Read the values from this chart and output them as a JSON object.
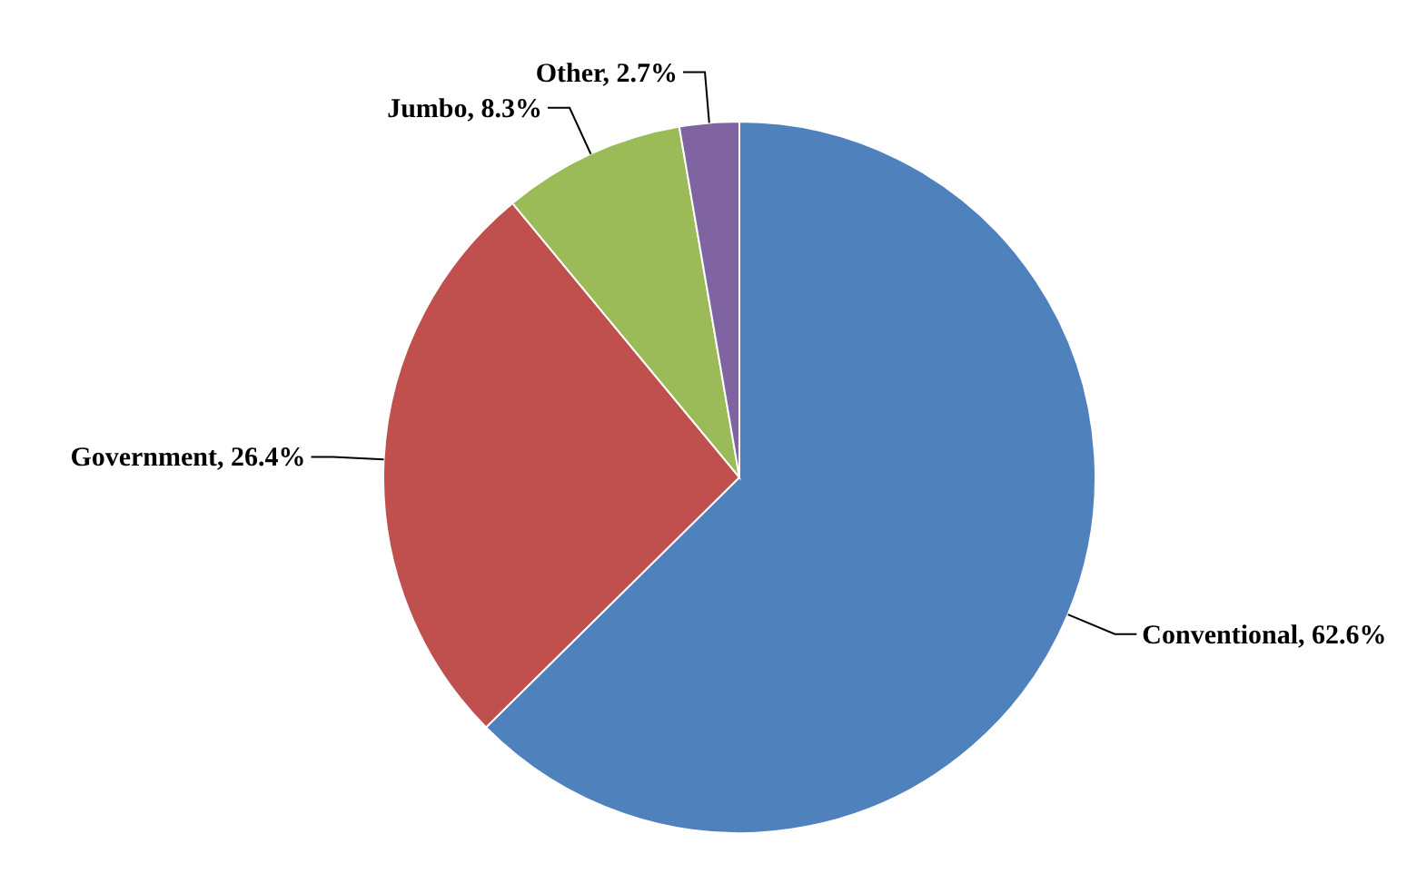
{
  "chart_data": {
    "type": "pie",
    "categories": [
      "Conventional",
      "Government",
      "Jumbo",
      "Other"
    ],
    "values": [
      62.6,
      26.4,
      8.3,
      2.7
    ],
    "value_labels": [
      "62.6%",
      "26.4%",
      "8.3%",
      "2.7%"
    ],
    "colors": [
      "#4f81bd",
      "#c0504d",
      "#9bbb59",
      "#8064a2"
    ],
    "legend": false
  }
}
